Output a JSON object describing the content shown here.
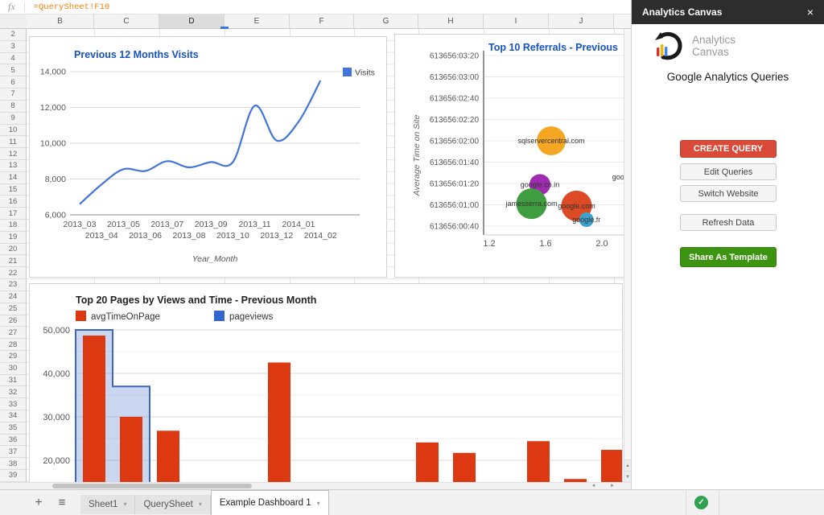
{
  "formula_bar": {
    "fx": "fx",
    "formula": "=QuerySheet!F10"
  },
  "columns": [
    "B",
    "C",
    "D",
    "E",
    "F",
    "G",
    "H",
    "I",
    "J"
  ],
  "selected_column": "D",
  "row_numbers": [
    "2",
    "3",
    "4",
    "5",
    "6",
    "7",
    "8",
    "9",
    "10",
    "11",
    "12",
    "13",
    "14",
    "15",
    "16",
    "17",
    "18",
    "19",
    "20",
    "21",
    "22",
    "23",
    "24",
    "25",
    "26",
    "27",
    "28",
    "29",
    "30",
    "31",
    "32",
    "33",
    "34",
    "35",
    "36",
    "37",
    "38",
    "39"
  ],
  "sheet_tabs": {
    "add_label": "+",
    "all_sheets_label": "≡",
    "tabs": [
      {
        "label": "Sheet1",
        "active": false
      },
      {
        "label": "QuerySheet",
        "active": false
      },
      {
        "label": "Example Dashboard 1",
        "active": true
      }
    ]
  },
  "status": {
    "saved_check": "✓"
  },
  "sidebar": {
    "title": "Analytics Canvas",
    "close": "×",
    "logo": {
      "line1": "Analytics",
      "line2": "Canvas",
      "colors": {
        "brush": "#1a1a1a",
        "bar_red": "#d93025",
        "bar_yellow": "#f4b400",
        "bar_blue": "#4285f4"
      }
    },
    "heading": "Google Analytics Queries",
    "buttons": [
      {
        "label": "CREATE QUERY",
        "style": "primary-red"
      },
      {
        "label": "Edit Queries",
        "style": "default"
      },
      {
        "label": "Switch Website",
        "style": "default"
      },
      {
        "label": "Refresh Data",
        "style": "default"
      },
      {
        "label": "Share As Template",
        "style": "primary-green"
      }
    ]
  },
  "chart_data": [
    {
      "type": "line",
      "title": "Previous 12 Months Visits",
      "title_color": "#1552c4",
      "categories": [
        "2013_03",
        "2013_04",
        "2013_05",
        "2013_06",
        "2013_07",
        "2013_08",
        "2013_09",
        "2013_10",
        "2013_11",
        "2013_12",
        "2014_01",
        "2014_02"
      ],
      "series": [
        {
          "name": "Visits",
          "color": "#4274d9",
          "values": [
            6600,
            7700,
            8550,
            8450,
            9000,
            8650,
            8950,
            8950,
            12100,
            10150,
            11200,
            13500
          ]
        }
      ],
      "yticks": [
        {
          "v": 6000,
          "label": "6,000"
        },
        {
          "v": 8000,
          "label": "8,000"
        },
        {
          "v": 10000,
          "label": "10,000"
        },
        {
          "v": 12000,
          "label": "12,000"
        },
        {
          "v": 14000,
          "label": "14,000"
        }
      ],
      "ylim": [
        6000,
        14000
      ],
      "xlabel": "Year_Month",
      "legend_position": "top-right",
      "grid": true
    },
    {
      "type": "bubble",
      "title": "Top 10 Referrals - Previous",
      "title_color": "#1552c4",
      "ylabel": "Average Time on Site",
      "yticks": [
        {
          "s": 200,
          "label": "613656:03:20"
        },
        {
          "s": 180,
          "label": "613656:03:00"
        },
        {
          "s": 160,
          "label": "613656:02:40"
        },
        {
          "s": 140,
          "label": "613656:02:20"
        },
        {
          "s": 120,
          "label": "613656:02:00"
        },
        {
          "s": 100,
          "label": "613656:01:40"
        },
        {
          "s": 80,
          "label": "613656:01:20"
        },
        {
          "s": 60,
          "label": "613656:01:00"
        },
        {
          "s": 40,
          "label": "613656:00:40"
        }
      ],
      "xticks": [
        {
          "v": 1.2,
          "label": "1.2"
        },
        {
          "v": 1.6,
          "label": "1.6"
        },
        {
          "v": 2.0,
          "label": "2.0"
        }
      ],
      "bubbles": [
        {
          "label": "sqlservercentral.com",
          "x": 1.64,
          "y": 120,
          "r": 18,
          "color": "#f5a623"
        },
        {
          "label": "google.co.in",
          "x": 1.56,
          "y": 79,
          "r": 13,
          "color": "#a12bb0"
        },
        {
          "label": "jamesserra.com",
          "x": 1.5,
          "y": 61,
          "r": 19,
          "color": "#3f9e3f"
        },
        {
          "label": "google.com",
          "x": 1.82,
          "y": 59,
          "r": 19,
          "color": "#dc4a26"
        },
        {
          "label": "google.fr",
          "x": 1.89,
          "y": 46,
          "r": 9,
          "color": "#3ba2cc"
        },
        {
          "label": "goog",
          "x": 2.13,
          "y": 86,
          "r": 0,
          "color": "#999999"
        }
      ],
      "grid": true
    },
    {
      "type": "bar",
      "title": "Top 20 Pages by Views and Time - Previous Month",
      "title_color": "#222222",
      "legend": [
        {
          "name": "avgTimeOnPage",
          "color": "#dc3912"
        },
        {
          "name": "pageviews",
          "color": "#3366cc"
        }
      ],
      "yticks": [
        {
          "v": 20000,
          "label": "20,000"
        },
        {
          "v": 30000,
          "label": "30,000"
        },
        {
          "v": 40000,
          "label": "40,000"
        },
        {
          "v": 50000,
          "label": "50,000"
        }
      ],
      "minor_ticks": [
        45000,
        35000,
        25000
      ],
      "bar_series": {
        "name": "avgTimeOnPage",
        "color": "#dc3912",
        "values": [
          48700,
          30000,
          26800,
          null,
          null,
          42500,
          null,
          null,
          null,
          24100,
          21700,
          null,
          24400,
          15700,
          22400
        ]
      },
      "area_series": {
        "name": "pageviews",
        "color": "#3b66c4",
        "fill": "rgba(82,120,205,0.30)",
        "values": [
          50000,
          37000
        ]
      },
      "grid": true
    }
  ]
}
